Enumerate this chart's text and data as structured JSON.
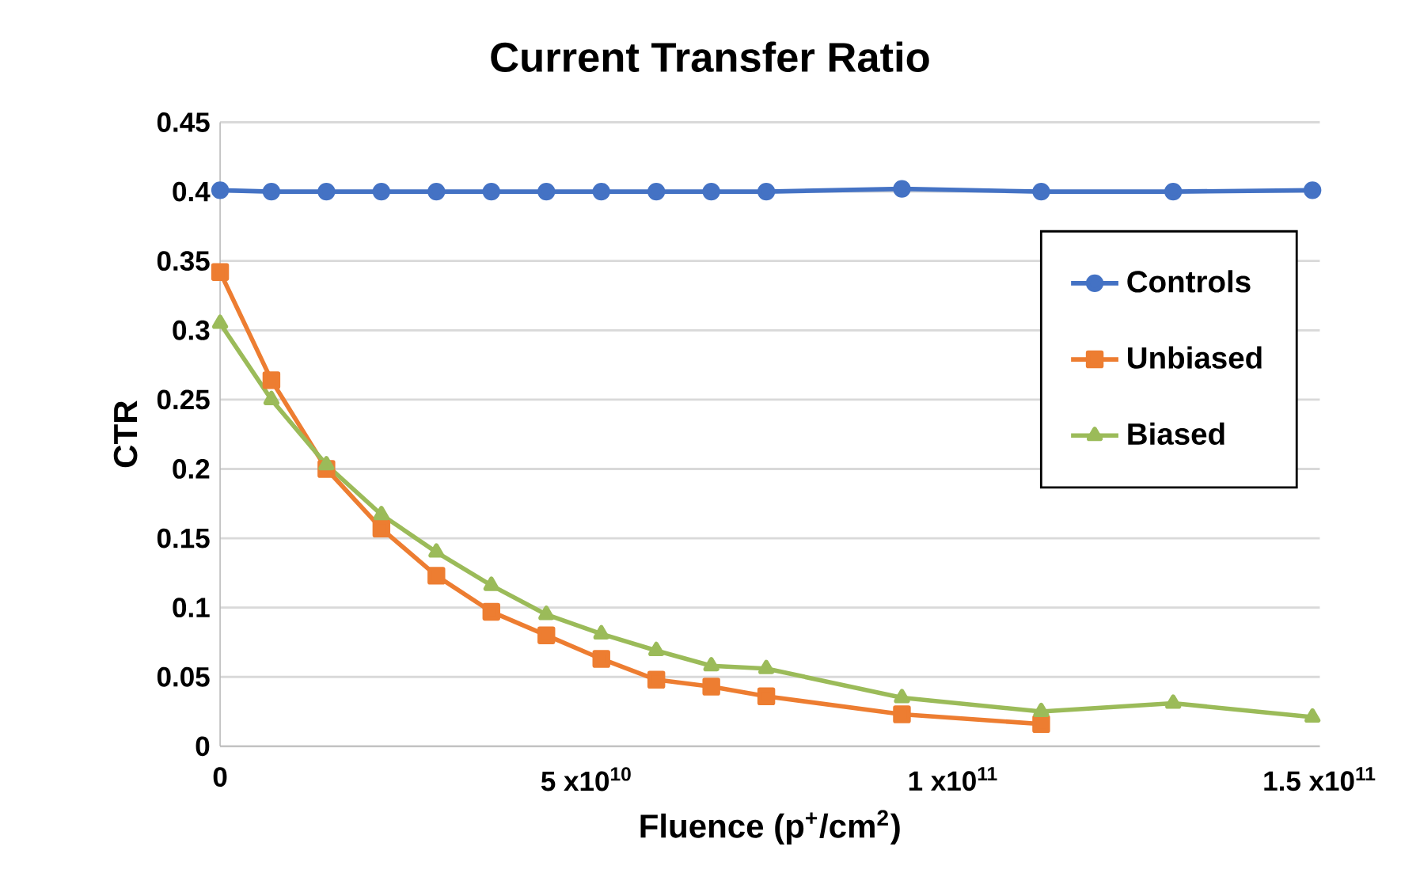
{
  "chart_data": {
    "type": "line",
    "title": "Current Transfer Ratio",
    "xlabel": "Fluence (p$^{+}$/cm$^{2}$)",
    "ylabel": "CTR",
    "xlim": [
      0,
      150000000000
    ],
    "ylim": [
      0,
      0.45
    ],
    "xticks": [
      0,
      {
        "value": 50000000000,
        "label": "5 x10$^{10}$"
      },
      {
        "value": 100000000000,
        "label": "1 x10$^{11}$"
      },
      {
        "value": 150000000000,
        "label": "1.5 x10$^{11}$"
      }
    ],
    "yticks": [
      0,
      0.05,
      0.1,
      0.15,
      0.2,
      0.25,
      0.3,
      0.35,
      0.4,
      0.45
    ],
    "grid": "y",
    "legend": "right",
    "series": [
      {
        "name": "Controls",
        "color": "#4472c4",
        "marker": "circle",
        "x": [
          0,
          7000000000,
          14500000000,
          22000000000,
          29500000000,
          37000000000,
          44500000000,
          52000000000,
          59500000000,
          67000000000,
          74500000000,
          93000000000,
          112000000000,
          130000000000,
          149000000000
        ],
        "values": [
          0.401,
          0.4,
          0.4,
          0.4,
          0.4,
          0.4,
          0.4,
          0.4,
          0.4,
          0.4,
          0.4,
          0.402,
          0.4,
          0.4,
          0.401
        ]
      },
      {
        "name": "Unbiased",
        "color": "#ed7d31",
        "marker": "square",
        "x": [
          0,
          7000000000,
          14500000000,
          22000000000,
          29500000000,
          37000000000,
          44500000000,
          52000000000,
          59500000000,
          67000000000,
          74500000000,
          93000000000,
          112000000000
        ],
        "values": [
          0.342,
          0.264,
          0.2,
          0.157,
          0.123,
          0.097,
          0.08,
          0.063,
          0.048,
          0.043,
          0.036,
          0.023,
          0.016
        ]
      },
      {
        "name": "Biased",
        "color": "#9bbb59",
        "marker": "triangle",
        "x": [
          0,
          7000000000,
          14500000000,
          22000000000,
          29500000000,
          37000000000,
          44500000000,
          52000000000,
          59500000000,
          67000000000,
          74500000000,
          93000000000,
          112000000000,
          130000000000,
          149000000000
        ],
        "values": [
          0.305,
          0.25,
          0.203,
          0.167,
          0.14,
          0.116,
          0.095,
          0.081,
          0.069,
          0.058,
          0.056,
          0.035,
          0.025,
          0.031,
          0.021
        ]
      }
    ]
  }
}
